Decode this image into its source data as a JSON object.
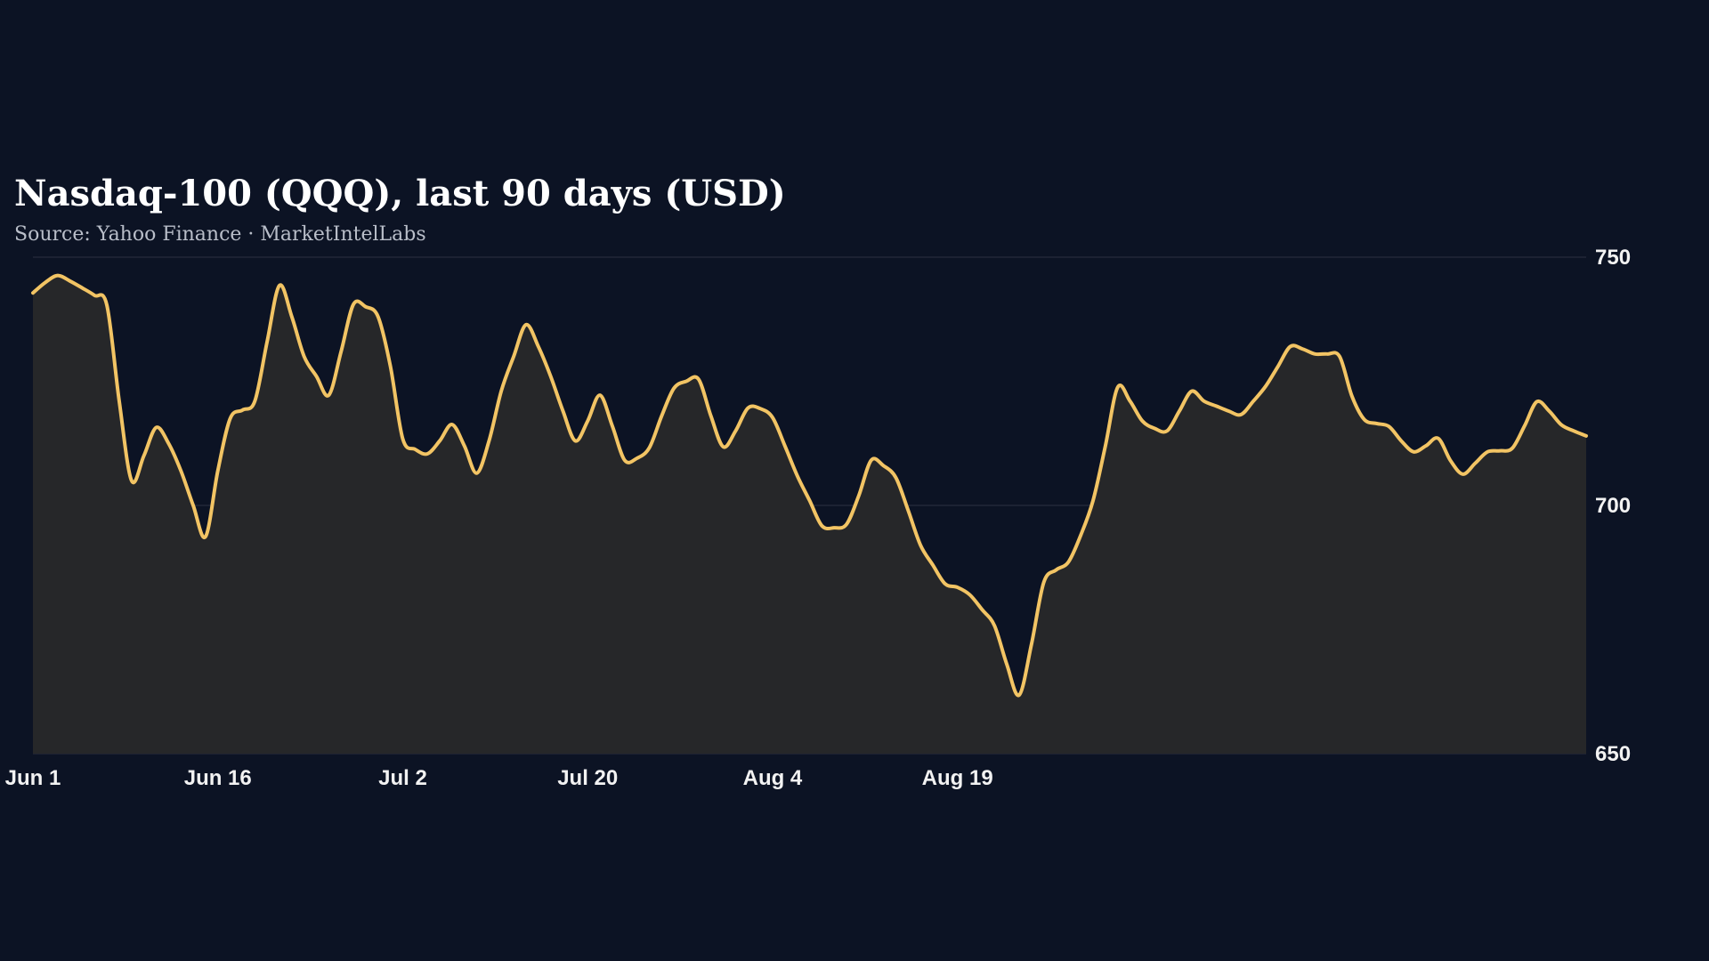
{
  "chart_data": {
    "type": "area",
    "title": "Nasdaq-100 (QQQ), last 90 days (USD)",
    "subtitle": "Source: Yahoo Finance · MarketIntelLabs",
    "xlabel": "",
    "ylabel": "",
    "ylim": [
      650,
      750
    ],
    "y_ticks": [
      750,
      700,
      650
    ],
    "x_tick_labels": [
      "Jun 1",
      "Jun 16",
      "Jul 2",
      "Jul 20",
      "Aug 4",
      "Aug 19"
    ],
    "x_tick_index": [
      0,
      15,
      30,
      45,
      60,
      75
    ],
    "grid": "horizontal",
    "legend": "none",
    "line_color": "#f2c464",
    "fill_color": "#262729",
    "series": [
      {
        "values": [
          742.8,
          744.9,
          746.3,
          745.2,
          743.8,
          742.3,
          740.3,
          721.0,
          705.0,
          710.0,
          715.7,
          712.5,
          707.0,
          700.0,
          693.7,
          707.0,
          717.5,
          719.2,
          721.0,
          733.0,
          744.3,
          738.0,
          730.0,
          726.0,
          722.2,
          731.0,
          740.5,
          740.0,
          738.0,
          728.0,
          713.4,
          711.3,
          710.4,
          713.0,
          716.3,
          712.0,
          706.5,
          713.0,
          723.1,
          730.0,
          736.4,
          732.0,
          726.0,
          719.0,
          713.0,
          717.0,
          722.2,
          716.0,
          709.1,
          709.5,
          711.6,
          718.0,
          723.6,
          725.0,
          725.4,
          718.0,
          711.8,
          715.0,
          719.6,
          719.5,
          717.7,
          712.0,
          706.0,
          701.0,
          695.9,
          695.5,
          696.2,
          702.0,
          709.1,
          708.0,
          705.6,
          699.0,
          692.0,
          688.0,
          684.2,
          683.5,
          682.0,
          679.0,
          675.8,
          668.0,
          661.8,
          672.0,
          684.5,
          687.0,
          688.6,
          694.0,
          701.0,
          712.0,
          723.8,
          721.0,
          717.0,
          715.5,
          715.0,
          719.0,
          723.0,
          721.0,
          720.0,
          719.0,
          718.3,
          721.0,
          724.0,
          728.0,
          732.0,
          731.5,
          730.5,
          730.5,
          730.0,
          722.0,
          717.3,
          716.5,
          715.9,
          713.0,
          710.8,
          712.0,
          713.5,
          709.0,
          706.3,
          708.5,
          710.8,
          711.0,
          711.5,
          716.0,
          720.9,
          719.0,
          716.2,
          715.0,
          714.0
        ]
      }
    ]
  }
}
